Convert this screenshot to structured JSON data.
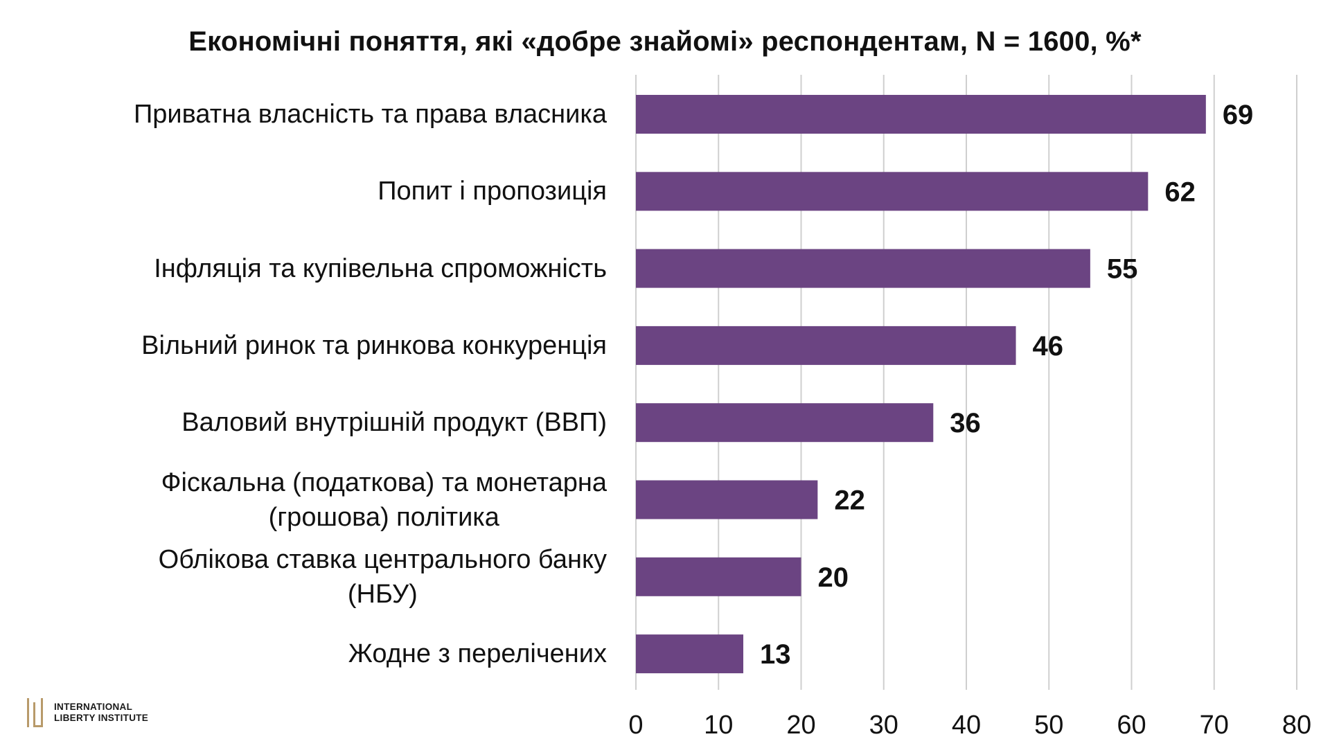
{
  "chart_data": {
    "type": "bar",
    "orientation": "horizontal",
    "title": "Економічні поняття, які «добре знайомі» респондентам, N = 1600, %*",
    "categories": [
      [
        "Приватна власність та права власника"
      ],
      [
        "Попит і пропозиція"
      ],
      [
        "Інфляція та купівельна спроможність"
      ],
      [
        "Вільний ринок та ринкова конкуренція"
      ],
      [
        "Валовий внутрішній продукт (ВВП)"
      ],
      [
        "Фіскальна (податкова) та монетарна",
        "(грошова) політика"
      ],
      [
        "Облікова ставка центрального банку",
        "(НБУ)"
      ],
      [
        "Жодне з перелічених"
      ]
    ],
    "values": [
      69,
      62,
      55,
      46,
      36,
      22,
      20,
      13
    ],
    "data_labels": [
      "69",
      "62",
      "55",
      "46",
      "36",
      "22",
      "20",
      "13"
    ],
    "xlim": [
      0,
      80
    ],
    "xticks": [
      0,
      10,
      20,
      30,
      40,
      50,
      60,
      70,
      80
    ],
    "xtick_labels": [
      "0",
      "10",
      "20",
      "30",
      "40",
      "50",
      "60",
      "70",
      "80"
    ],
    "grid": "vertical",
    "legend": "none",
    "bar_color": "#6b4482",
    "grid_color": "#cfcfcf"
  },
  "logo": {
    "line1": "International",
    "line2": "Liberty Institute",
    "mark_color": "#b89a6a"
  }
}
